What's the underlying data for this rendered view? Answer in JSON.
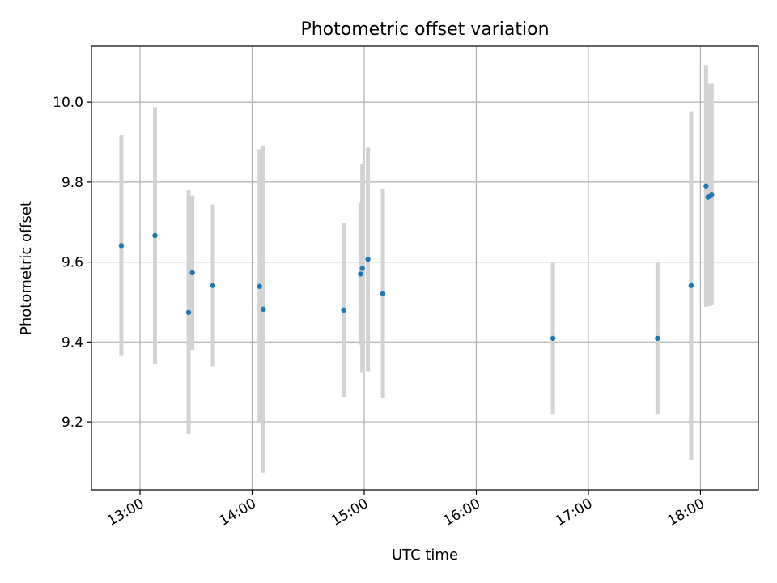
{
  "chart_data": {
    "type": "scatter",
    "title": "Photometric offset variation",
    "xlabel": "UTC time",
    "ylabel": "Photometric offset",
    "x_unit": "UTC time (HH:MM)",
    "xlim": [
      "12:34",
      "18:31"
    ],
    "ylim": [
      9.03,
      10.14
    ],
    "xticks": [
      "13:00",
      "14:00",
      "15:00",
      "16:00",
      "17:00",
      "18:00"
    ],
    "yticks": [
      9.2,
      9.4,
      9.6,
      9.8,
      10.0
    ],
    "ytick_labels": [
      "9.2",
      "9.4",
      "9.6",
      "9.8",
      "10.0"
    ],
    "grid": true,
    "legend": "none",
    "marker_color": "#1f77b4",
    "errorbar_color": "#d3d3d3",
    "points": [
      {
        "time": "12:50",
        "y": 9.641,
        "ylow": 9.365,
        "yhigh": 9.917
      },
      {
        "time": "13:08",
        "y": 9.666,
        "ylow": 9.346,
        "yhigh": 9.987
      },
      {
        "time": "13:26",
        "y": 9.474,
        "ylow": 9.17,
        "yhigh": 9.779
      },
      {
        "time": "13:28",
        "y": 9.573,
        "ylow": 9.38,
        "yhigh": 9.766
      },
      {
        "time": "13:39",
        "y": 9.541,
        "ylow": 9.339,
        "yhigh": 9.744
      },
      {
        "time": "14:04",
        "y": 9.539,
        "ylow": 9.196,
        "yhigh": 9.882
      },
      {
        "time": "14:06",
        "y": 9.482,
        "ylow": 9.073,
        "yhigh": 9.891
      },
      {
        "time": "14:49",
        "y": 9.48,
        "ylow": 9.263,
        "yhigh": 9.698
      },
      {
        "time": "14:58",
        "y": 9.57,
        "ylow": 9.393,
        "yhigh": 9.748
      },
      {
        "time": "14:59",
        "y": 9.584,
        "ylow": 9.323,
        "yhigh": 9.846
      },
      {
        "time": "15:02",
        "y": 9.607,
        "ylow": 9.327,
        "yhigh": 9.886
      },
      {
        "time": "15:10",
        "y": 9.521,
        "ylow": 9.26,
        "yhigh": 9.782
      },
      {
        "time": "16:41",
        "y": 9.409,
        "ylow": 9.22,
        "yhigh": 9.598
      },
      {
        "time": "17:37",
        "y": 9.409,
        "ylow": 9.22,
        "yhigh": 9.598
      },
      {
        "time": "17:55",
        "y": 9.541,
        "ylow": 9.105,
        "yhigh": 9.977
      },
      {
        "time": "18:03",
        "y": 9.79,
        "ylow": 9.488,
        "yhigh": 10.093
      },
      {
        "time": "18:04",
        "y": 9.762,
        "ylow": 9.555,
        "yhigh": 9.97
      },
      {
        "time": "18:05",
        "y": 9.765,
        "ylow": 9.49,
        "yhigh": 10.045
      },
      {
        "time": "18:06",
        "y": 9.769,
        "ylow": 9.492,
        "yhigh": 10.046
      }
    ]
  }
}
